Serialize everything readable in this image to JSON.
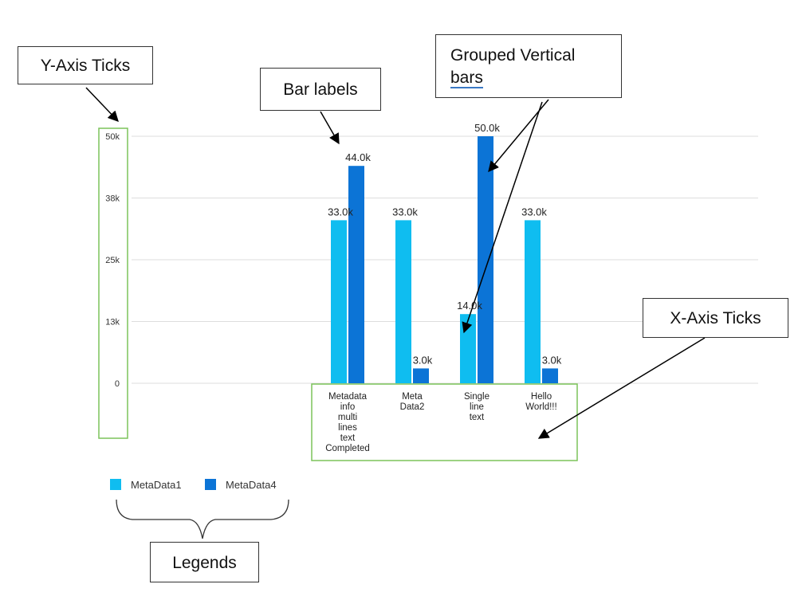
{
  "chart_data": {
    "type": "bar",
    "categories": [
      [
        "Metadata",
        "info",
        "multi",
        "lines",
        "text",
        "Completed"
      ],
      [
        "Meta",
        "Data2"
      ],
      [
        "Single",
        "line",
        "text"
      ],
      [
        "Hello",
        "World!!!"
      ]
    ],
    "series": [
      {
        "name": "MetaData1",
        "values": [
          33000,
          33000,
          14000,
          33000
        ],
        "labels": [
          "33.0k",
          "33.0k",
          "14.0k",
          "33.0k"
        ],
        "color": "#0fbdf0"
      },
      {
        "name": "MetaData4",
        "values": [
          44000,
          3000,
          50000,
          3000
        ],
        "labels": [
          "44.0k",
          "3.0k",
          "50.0k",
          "3.0k"
        ],
        "color": "#0c74d6"
      }
    ],
    "yticks": [
      {
        "value": 0,
        "label": "0"
      },
      {
        "value": 12500,
        "label": "13k"
      },
      {
        "value": 25000,
        "label": "25k"
      },
      {
        "value": 37500,
        "label": "38k"
      },
      {
        "value": 50000,
        "label": "50k"
      }
    ],
    "ylim": [
      0,
      50000
    ],
    "grid": true,
    "legend_position": "bottom-left"
  },
  "callouts": {
    "yaxis": "Y-Axis Ticks",
    "bar_labels": "Bar labels",
    "grouped_line1": "Grouped Vertical",
    "grouped_line2": "bars",
    "xaxis": "X-Axis Ticks",
    "legends": "Legends"
  },
  "colors": {
    "grid": "#dddddd",
    "highlight_box": "#7cc35a",
    "arrow": "#000000"
  }
}
